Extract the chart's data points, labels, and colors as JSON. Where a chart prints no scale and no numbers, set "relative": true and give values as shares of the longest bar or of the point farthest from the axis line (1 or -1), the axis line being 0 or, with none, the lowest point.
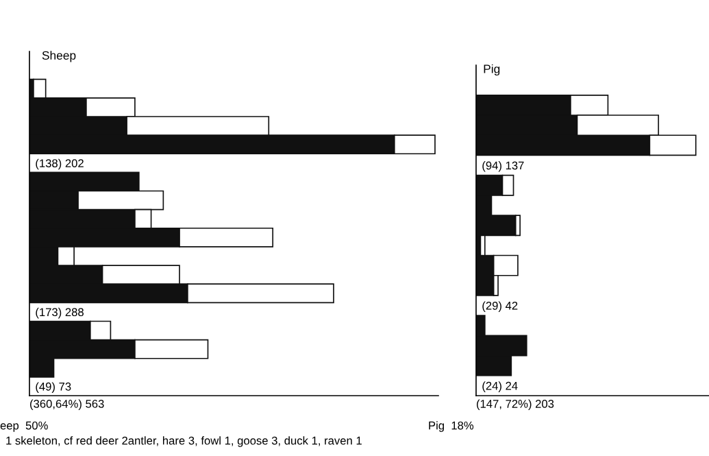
{
  "chart_data": [
    {
      "type": "bar",
      "orientation": "horizontal",
      "stacked": true,
      "relative": true,
      "title": "Sheep",
      "xlabel": "(360,64%) 563",
      "categories": [
        null,
        null,
        null,
        null,
        "(138) 202",
        null,
        null,
        null,
        null,
        null,
        null,
        null,
        "(173) 288",
        null,
        null,
        null,
        "(49) 73"
      ],
      "series": [
        {
          "color": "#111111",
          "values": [
            0.01,
            0.14,
            0.24,
            0.9,
            null,
            0.27,
            0.12,
            0.26,
            0.37,
            0.07,
            0.18,
            0.39,
            null,
            0.15,
            0.26,
            0.06,
            null
          ]
        },
        {
          "color": "#ffffff",
          "values": [
            0.03,
            0.12,
            0.35,
            0.1,
            null,
            null,
            0.21,
            0.04,
            0.23,
            0.04,
            0.19,
            0.36,
            null,
            0.05,
            0.18,
            null,
            null
          ]
        }
      ],
      "annotations": [
        "eep  50%",
        "1 skeleton, cf red deer 2antler, hare 3, fowl 1, goose 3, duck 1, raven 1"
      ]
    },
    {
      "type": "bar",
      "orientation": "horizontal",
      "stacked": true,
      "relative": true,
      "title": "Pig",
      "xlabel": "(147, 72%) 203",
      "categories": [
        null,
        null,
        null,
        "(94) 137",
        null,
        null,
        null,
        null,
        null,
        null,
        "(29) 42",
        null,
        null,
        null,
        "(24) 24"
      ],
      "series": [
        {
          "color": "#111111",
          "values": [
            0.43,
            0.46,
            0.79,
            null,
            0.12,
            0.07,
            0.18,
            0.02,
            0.08,
            0.08,
            null,
            0.04,
            0.23,
            0.16,
            null
          ]
        },
        {
          "color": "#ffffff",
          "values": [
            0.17,
            0.37,
            0.21,
            null,
            0.05,
            null,
            0.02,
            0.02,
            0.11,
            0.02,
            null,
            null,
            null,
            null,
            null
          ]
        }
      ],
      "annotations": [
        "Pig  18%"
      ]
    }
  ]
}
